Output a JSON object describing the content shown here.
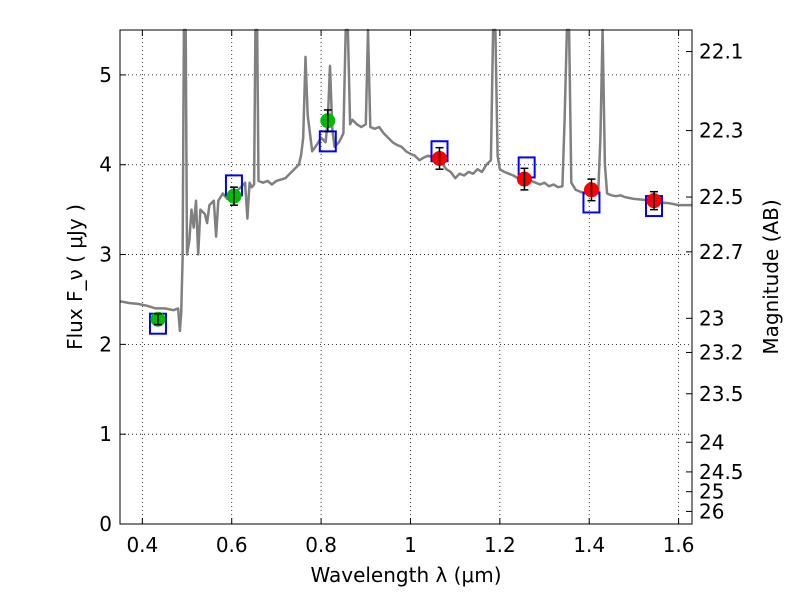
{
  "chart_data": {
    "type": "scatter",
    "xlabel": "Wavelength  λ (μm)",
    "ylabel": "Flux  F_ν  ( μJy )",
    "y2label": "Magnitude (AB)",
    "xlim": [
      0.35,
      1.63
    ],
    "ylim": [
      0,
      5.5
    ],
    "grid": true,
    "x_ticks": [
      0.4,
      0.6,
      0.8,
      1.0,
      1.2,
      1.4,
      1.6
    ],
    "x_tick_labels": [
      "0.4",
      "0.6",
      "0.8",
      "1",
      "1.2",
      "1.4",
      "1.6"
    ],
    "y_ticks": [
      0,
      1,
      2,
      3,
      4,
      5
    ],
    "y_tick_labels": [
      "0",
      "1",
      "2",
      "3",
      "4",
      "5"
    ],
    "y2_ticks": [
      {
        "label": "22.1",
        "flux": 5.26
      },
      {
        "label": "22.3",
        "flux": 4.38
      },
      {
        "label": "22.5",
        "flux": 3.64
      },
      {
        "label": "22.7",
        "flux": 3.03
      },
      {
        "label": "23",
        "flux": 2.29
      },
      {
        "label": "23.2",
        "flux": 1.91
      },
      {
        "label": "23.5",
        "flux": 1.45
      },
      {
        "label": "24",
        "flux": 0.91
      },
      {
        "label": "24.5",
        "flux": 0.58
      },
      {
        "label": "25",
        "flux": 0.36
      },
      {
        "label": "26",
        "flux": 0.14
      }
    ],
    "colors": {
      "spectrum": "#808080",
      "model": "#0000ff",
      "green": "#00bb00",
      "red": "#ff0000"
    },
    "spectrum": [
      [
        0.35,
        2.48
      ],
      [
        0.37,
        2.46
      ],
      [
        0.39,
        2.45
      ],
      [
        0.41,
        2.43
      ],
      [
        0.43,
        2.4
      ],
      [
        0.45,
        2.4
      ],
      [
        0.47,
        2.38
      ],
      [
        0.48,
        2.4
      ],
      [
        0.484,
        2.15
      ],
      [
        0.487,
        2.35
      ],
      [
        0.49,
        2.95
      ],
      [
        0.493,
        5.6
      ],
      [
        0.497,
        5.6
      ],
      [
        0.5,
        3.0
      ],
      [
        0.505,
        3.15
      ],
      [
        0.51,
        3.5
      ],
      [
        0.515,
        3.3
      ],
      [
        0.52,
        3.6
      ],
      [
        0.525,
        3.0
      ],
      [
        0.53,
        3.5
      ],
      [
        0.54,
        3.45
      ],
      [
        0.545,
        3.35
      ],
      [
        0.55,
        3.55
      ],
      [
        0.56,
        3.6
      ],
      [
        0.565,
        3.2
      ],
      [
        0.57,
        3.6
      ],
      [
        0.58,
        3.68
      ],
      [
        0.59,
        3.62
      ],
      [
        0.6,
        3.72
      ],
      [
        0.61,
        3.7
      ],
      [
        0.62,
        3.75
      ],
      [
        0.63,
        3.8
      ],
      [
        0.635,
        3.4
      ],
      [
        0.64,
        3.8
      ],
      [
        0.645,
        3.75
      ],
      [
        0.65,
        3.78
      ],
      [
        0.653,
        5.6
      ],
      [
        0.657,
        5.6
      ],
      [
        0.66,
        3.82
      ],
      [
        0.67,
        3.8
      ],
      [
        0.68,
        3.82
      ],
      [
        0.69,
        3.78
      ],
      [
        0.7,
        3.82
      ],
      [
        0.72,
        3.85
      ],
      [
        0.73,
        3.9
      ],
      [
        0.74,
        3.95
      ],
      [
        0.75,
        4.0
      ],
      [
        0.755,
        4.1
      ],
      [
        0.76,
        4.3
      ],
      [
        0.765,
        5.2
      ],
      [
        0.77,
        4.55
      ],
      [
        0.78,
        4.15
      ],
      [
        0.79,
        4.22
      ],
      [
        0.8,
        4.3
      ],
      [
        0.81,
        4.25
      ],
      [
        0.815,
        4.5
      ],
      [
        0.82,
        5.1
      ],
      [
        0.825,
        4.4
      ],
      [
        0.83,
        4.2
      ],
      [
        0.84,
        4.25
      ],
      [
        0.85,
        4.35
      ],
      [
        0.855,
        5.6
      ],
      [
        0.86,
        5.6
      ],
      [
        0.865,
        4.45
      ],
      [
        0.87,
        4.5
      ],
      [
        0.88,
        4.45
      ],
      [
        0.89,
        4.42
      ],
      [
        0.9,
        4.45
      ],
      [
        0.905,
        5.6
      ],
      [
        0.91,
        4.42
      ],
      [
        0.92,
        4.4
      ],
      [
        0.93,
        4.42
      ],
      [
        0.94,
        4.35
      ],
      [
        0.95,
        4.3
      ],
      [
        0.96,
        4.25
      ],
      [
        0.97,
        4.22
      ],
      [
        0.98,
        4.2
      ],
      [
        0.99,
        4.15
      ],
      [
        1.0,
        4.12
      ],
      [
        1.01,
        4.1
      ],
      [
        1.02,
        4.05
      ],
      [
        1.03,
        4.08
      ],
      [
        1.04,
        4.1
      ],
      [
        1.05,
        4.08
      ],
      [
        1.06,
        4.05
      ],
      [
        1.07,
        4.02
      ],
      [
        1.08,
        3.95
      ],
      [
        1.09,
        3.92
      ],
      [
        1.1,
        3.85
      ],
      [
        1.11,
        3.9
      ],
      [
        1.12,
        3.88
      ],
      [
        1.13,
        3.92
      ],
      [
        1.14,
        3.9
      ],
      [
        1.15,
        3.95
      ],
      [
        1.16,
        3.92
      ],
      [
        1.17,
        4.0
      ],
      [
        1.18,
        4.05
      ],
      [
        1.185,
        5.6
      ],
      [
        1.19,
        5.6
      ],
      [
        1.195,
        4.1
      ],
      [
        1.2,
        3.95
      ],
      [
        1.21,
        3.92
      ],
      [
        1.22,
        3.9
      ],
      [
        1.23,
        3.88
      ],
      [
        1.24,
        3.85
      ],
      [
        1.25,
        3.82
      ],
      [
        1.26,
        3.85
      ],
      [
        1.27,
        3.82
      ],
      [
        1.28,
        3.8
      ],
      [
        1.29,
        3.78
      ],
      [
        1.3,
        3.8
      ],
      [
        1.31,
        3.76
      ],
      [
        1.32,
        3.78
      ],
      [
        1.33,
        3.75
      ],
      [
        1.34,
        3.76
      ],
      [
        1.345,
        4.5
      ],
      [
        1.35,
        5.6
      ],
      [
        1.355,
        5.6
      ],
      [
        1.36,
        3.8
      ],
      [
        1.37,
        3.72
      ],
      [
        1.38,
        3.7
      ],
      [
        1.39,
        3.68
      ],
      [
        1.4,
        3.7
      ],
      [
        1.41,
        3.72
      ],
      [
        1.42,
        3.68
      ],
      [
        1.425,
        4.3
      ],
      [
        1.43,
        5.6
      ],
      [
        1.435,
        4.0
      ],
      [
        1.44,
        3.68
      ],
      [
        1.45,
        3.66
      ],
      [
        1.46,
        3.65
      ],
      [
        1.47,
        3.66
      ],
      [
        1.48,
        3.64
      ],
      [
        1.49,
        3.63
      ],
      [
        1.5,
        3.62
      ],
      [
        1.52,
        3.61
      ],
      [
        1.54,
        3.6
      ],
      [
        1.56,
        3.58
      ],
      [
        1.58,
        3.57
      ],
      [
        1.6,
        3.55
      ],
      [
        1.62,
        3.55
      ],
      [
        1.63,
        3.55
      ]
    ],
    "model_boxes": [
      {
        "x": 0.435,
        "y": 2.23
      },
      {
        "x": 0.605,
        "y": 3.77
      },
      {
        "x": 0.815,
        "y": 4.26
      },
      {
        "x": 1.065,
        "y": 4.15
      },
      {
        "x": 1.26,
        "y": 3.97
      },
      {
        "x": 1.405,
        "y": 3.58
      },
      {
        "x": 1.545,
        "y": 3.54
      }
    ],
    "points": [
      {
        "x": 0.435,
        "y": 2.28,
        "err": 0.06,
        "color": "green"
      },
      {
        "x": 0.605,
        "y": 3.65,
        "err": 0.1,
        "color": "green"
      },
      {
        "x": 0.815,
        "y": 4.49,
        "err": 0.12,
        "color": "green"
      },
      {
        "x": 1.065,
        "y": 4.07,
        "err": 0.12,
        "color": "red"
      },
      {
        "x": 1.255,
        "y": 3.84,
        "err": 0.12,
        "color": "red"
      },
      {
        "x": 1.405,
        "y": 3.72,
        "err": 0.12,
        "color": "red"
      },
      {
        "x": 1.545,
        "y": 3.6,
        "err": 0.1,
        "color": "red"
      }
    ]
  }
}
